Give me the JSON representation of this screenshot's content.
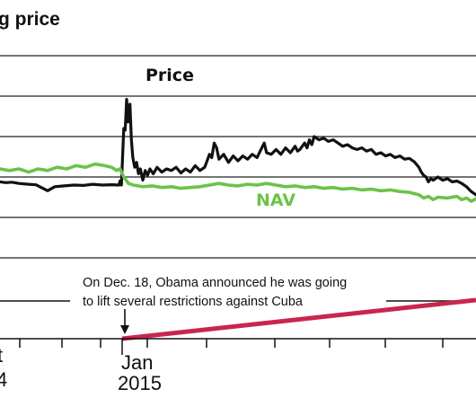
{
  "chart_data": {
    "type": "line",
    "title": "g price",
    "x_range": [
      "2014-09-01",
      "2015-05-31"
    ],
    "grid": true,
    "series": [
      {
        "name": "Price",
        "color": "#111111",
        "points": [
          [
            0,
            0.44
          ],
          [
            0.012,
            0.43
          ],
          [
            0.025,
            0.435
          ],
          [
            0.04,
            0.42
          ],
          [
            0.06,
            0.41
          ],
          [
            0.075,
            0.405
          ],
          [
            0.09,
            0.36
          ],
          [
            0.1,
            0.33
          ],
          [
            0.115,
            0.38
          ],
          [
            0.135,
            0.39
          ],
          [
            0.155,
            0.4
          ],
          [
            0.175,
            0.395
          ],
          [
            0.195,
            0.41
          ],
          [
            0.215,
            0.4
          ],
          [
            0.235,
            0.405
          ],
          [
            0.25,
            0.4
          ],
          [
            0.252,
            0.45
          ],
          [
            0.255,
            0.4
          ],
          [
            0.26,
            1.1
          ],
          [
            0.263,
            1.08
          ],
          [
            0.266,
            1.46
          ],
          [
            0.269,
            1.18
          ],
          [
            0.273,
            1.4
          ],
          [
            0.276,
            0.96
          ],
          [
            0.279,
            0.74
          ],
          [
            0.283,
            0.62
          ],
          [
            0.287,
            0.68
          ],
          [
            0.291,
            0.54
          ],
          [
            0.295,
            0.6
          ],
          [
            0.3,
            0.46
          ],
          [
            0.305,
            0.58
          ],
          [
            0.31,
            0.52
          ],
          [
            0.315,
            0.6
          ],
          [
            0.322,
            0.54
          ],
          [
            0.33,
            0.62
          ],
          [
            0.34,
            0.56
          ],
          [
            0.35,
            0.6
          ],
          [
            0.36,
            0.58
          ],
          [
            0.37,
            0.62
          ],
          [
            0.38,
            0.55
          ],
          [
            0.39,
            0.6
          ],
          [
            0.4,
            0.56
          ],
          [
            0.41,
            0.64
          ],
          [
            0.42,
            0.58
          ],
          [
            0.43,
            0.62
          ],
          [
            0.435,
            0.7
          ],
          [
            0.44,
            0.78
          ],
          [
            0.445,
            0.74
          ],
          [
            0.45,
            0.92
          ],
          [
            0.455,
            0.86
          ],
          [
            0.46,
            0.72
          ],
          [
            0.47,
            0.78
          ],
          [
            0.48,
            0.68
          ],
          [
            0.49,
            0.76
          ],
          [
            0.5,
            0.7
          ],
          [
            0.51,
            0.76
          ],
          [
            0.52,
            0.72
          ],
          [
            0.53,
            0.78
          ],
          [
            0.54,
            0.74
          ],
          [
            0.55,
            0.86
          ],
          [
            0.555,
            0.92
          ],
          [
            0.56,
            0.8
          ],
          [
            0.57,
            0.78
          ],
          [
            0.58,
            0.84
          ],
          [
            0.59,
            0.78
          ],
          [
            0.6,
            0.86
          ],
          [
            0.61,
            0.8
          ],
          [
            0.62,
            0.88
          ],
          [
            0.625,
            0.82
          ],
          [
            0.63,
            0.84
          ],
          [
            0.64,
            0.92
          ],
          [
            0.645,
            0.86
          ],
          [
            0.65,
            0.96
          ],
          [
            0.655,
            0.9
          ],
          [
            0.66,
            1.0
          ],
          [
            0.67,
            0.96
          ],
          [
            0.68,
            0.98
          ],
          [
            0.69,
            0.94
          ],
          [
            0.7,
            0.96
          ],
          [
            0.71,
            0.92
          ],
          [
            0.72,
            0.88
          ],
          [
            0.73,
            0.9
          ],
          [
            0.74,
            0.86
          ],
          [
            0.75,
            0.84
          ],
          [
            0.76,
            0.86
          ],
          [
            0.77,
            0.82
          ],
          [
            0.78,
            0.84
          ],
          [
            0.79,
            0.78
          ],
          [
            0.8,
            0.8
          ],
          [
            0.81,
            0.76
          ],
          [
            0.82,
            0.78
          ],
          [
            0.83,
            0.74
          ],
          [
            0.84,
            0.76
          ],
          [
            0.85,
            0.72
          ],
          [
            0.86,
            0.73
          ],
          [
            0.87,
            0.69
          ],
          [
            0.88,
            0.62
          ],
          [
            0.885,
            0.56
          ],
          [
            0.89,
            0.52
          ],
          [
            0.895,
            0.5
          ],
          [
            0.9,
            0.44
          ],
          [
            0.905,
            0.48
          ],
          [
            0.91,
            0.46
          ],
          [
            0.92,
            0.5
          ],
          [
            0.93,
            0.46
          ],
          [
            0.94,
            0.48
          ],
          [
            0.95,
            0.44
          ],
          [
            0.96,
            0.45
          ],
          [
            0.97,
            0.42
          ],
          [
            0.98,
            0.38
          ],
          [
            0.99,
            0.32
          ],
          [
            1.0,
            0.28
          ]
        ]
      },
      {
        "name": "NAV",
        "color": "#6cc24a",
        "points": [
          [
            0,
            0.6
          ],
          [
            0.02,
            0.58
          ],
          [
            0.04,
            0.6
          ],
          [
            0.06,
            0.56
          ],
          [
            0.08,
            0.6
          ],
          [
            0.1,
            0.58
          ],
          [
            0.12,
            0.62
          ],
          [
            0.14,
            0.6
          ],
          [
            0.16,
            0.64
          ],
          [
            0.18,
            0.62
          ],
          [
            0.2,
            0.66
          ],
          [
            0.22,
            0.64
          ],
          [
            0.235,
            0.62
          ],
          [
            0.245,
            0.58
          ],
          [
            0.252,
            0.6
          ],
          [
            0.26,
            0.5
          ],
          [
            0.27,
            0.42
          ],
          [
            0.28,
            0.4
          ],
          [
            0.3,
            0.38
          ],
          [
            0.32,
            0.39
          ],
          [
            0.34,
            0.37
          ],
          [
            0.36,
            0.38
          ],
          [
            0.38,
            0.36
          ],
          [
            0.4,
            0.37
          ],
          [
            0.42,
            0.38
          ],
          [
            0.44,
            0.4
          ],
          [
            0.46,
            0.42
          ],
          [
            0.48,
            0.4
          ],
          [
            0.5,
            0.39
          ],
          [
            0.52,
            0.41
          ],
          [
            0.54,
            0.4
          ],
          [
            0.56,
            0.42
          ],
          [
            0.58,
            0.4
          ],
          [
            0.6,
            0.38
          ],
          [
            0.62,
            0.39
          ],
          [
            0.64,
            0.37
          ],
          [
            0.66,
            0.38
          ],
          [
            0.68,
            0.36
          ],
          [
            0.7,
            0.37
          ],
          [
            0.72,
            0.35
          ],
          [
            0.74,
            0.36
          ],
          [
            0.76,
            0.34
          ],
          [
            0.78,
            0.35
          ],
          [
            0.8,
            0.33
          ],
          [
            0.82,
            0.34
          ],
          [
            0.84,
            0.32
          ],
          [
            0.86,
            0.31
          ],
          [
            0.88,
            0.28
          ],
          [
            0.89,
            0.24
          ],
          [
            0.9,
            0.26
          ],
          [
            0.91,
            0.22
          ],
          [
            0.92,
            0.25
          ],
          [
            0.94,
            0.24
          ],
          [
            0.96,
            0.26
          ],
          [
            0.97,
            0.22
          ],
          [
            0.98,
            0.24
          ],
          [
            0.99,
            0.2
          ],
          [
            1.0,
            0.23
          ]
        ]
      }
    ],
    "x_ticks": [
      {
        "line1": "t",
        "line2": "4",
        "date": "2014-10-01"
      },
      {
        "line1": "Jan",
        "line2": "2015",
        "date": "2015-01-01"
      }
    ],
    "annotation": {
      "lines": [
        "On Dec. 18, Obama announced he was going",
        "to lift several restrictions against Cuba"
      ],
      "date": "2014-12-18"
    },
    "timeline_color": "#c8264f"
  }
}
